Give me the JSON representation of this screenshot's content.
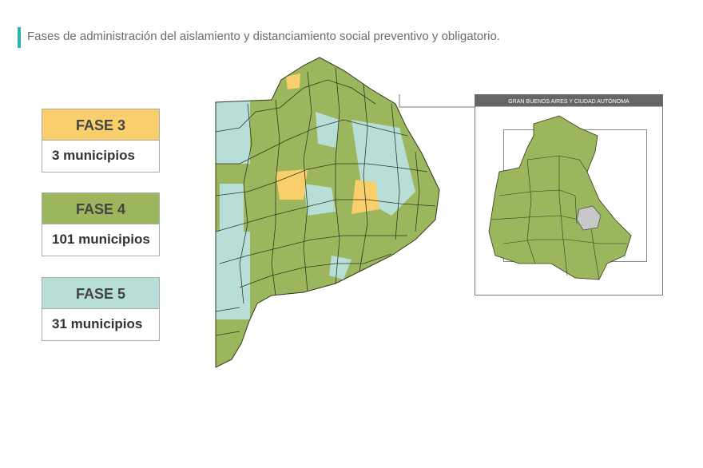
{
  "header": {
    "title": "Fases de administración del aislamiento y distanciamiento social preventivo y obligatorio."
  },
  "legend": [
    {
      "label": "FASE 3",
      "count": "3 municipios"
    },
    {
      "label": "FASE 4",
      "count": "101 municipios"
    },
    {
      "label": "FASE 5",
      "count": "31 municipios"
    }
  ],
  "inset": {
    "title": "GRAN BUENOS AIRES Y CIUDAD AUTÓNOMA"
  }
}
